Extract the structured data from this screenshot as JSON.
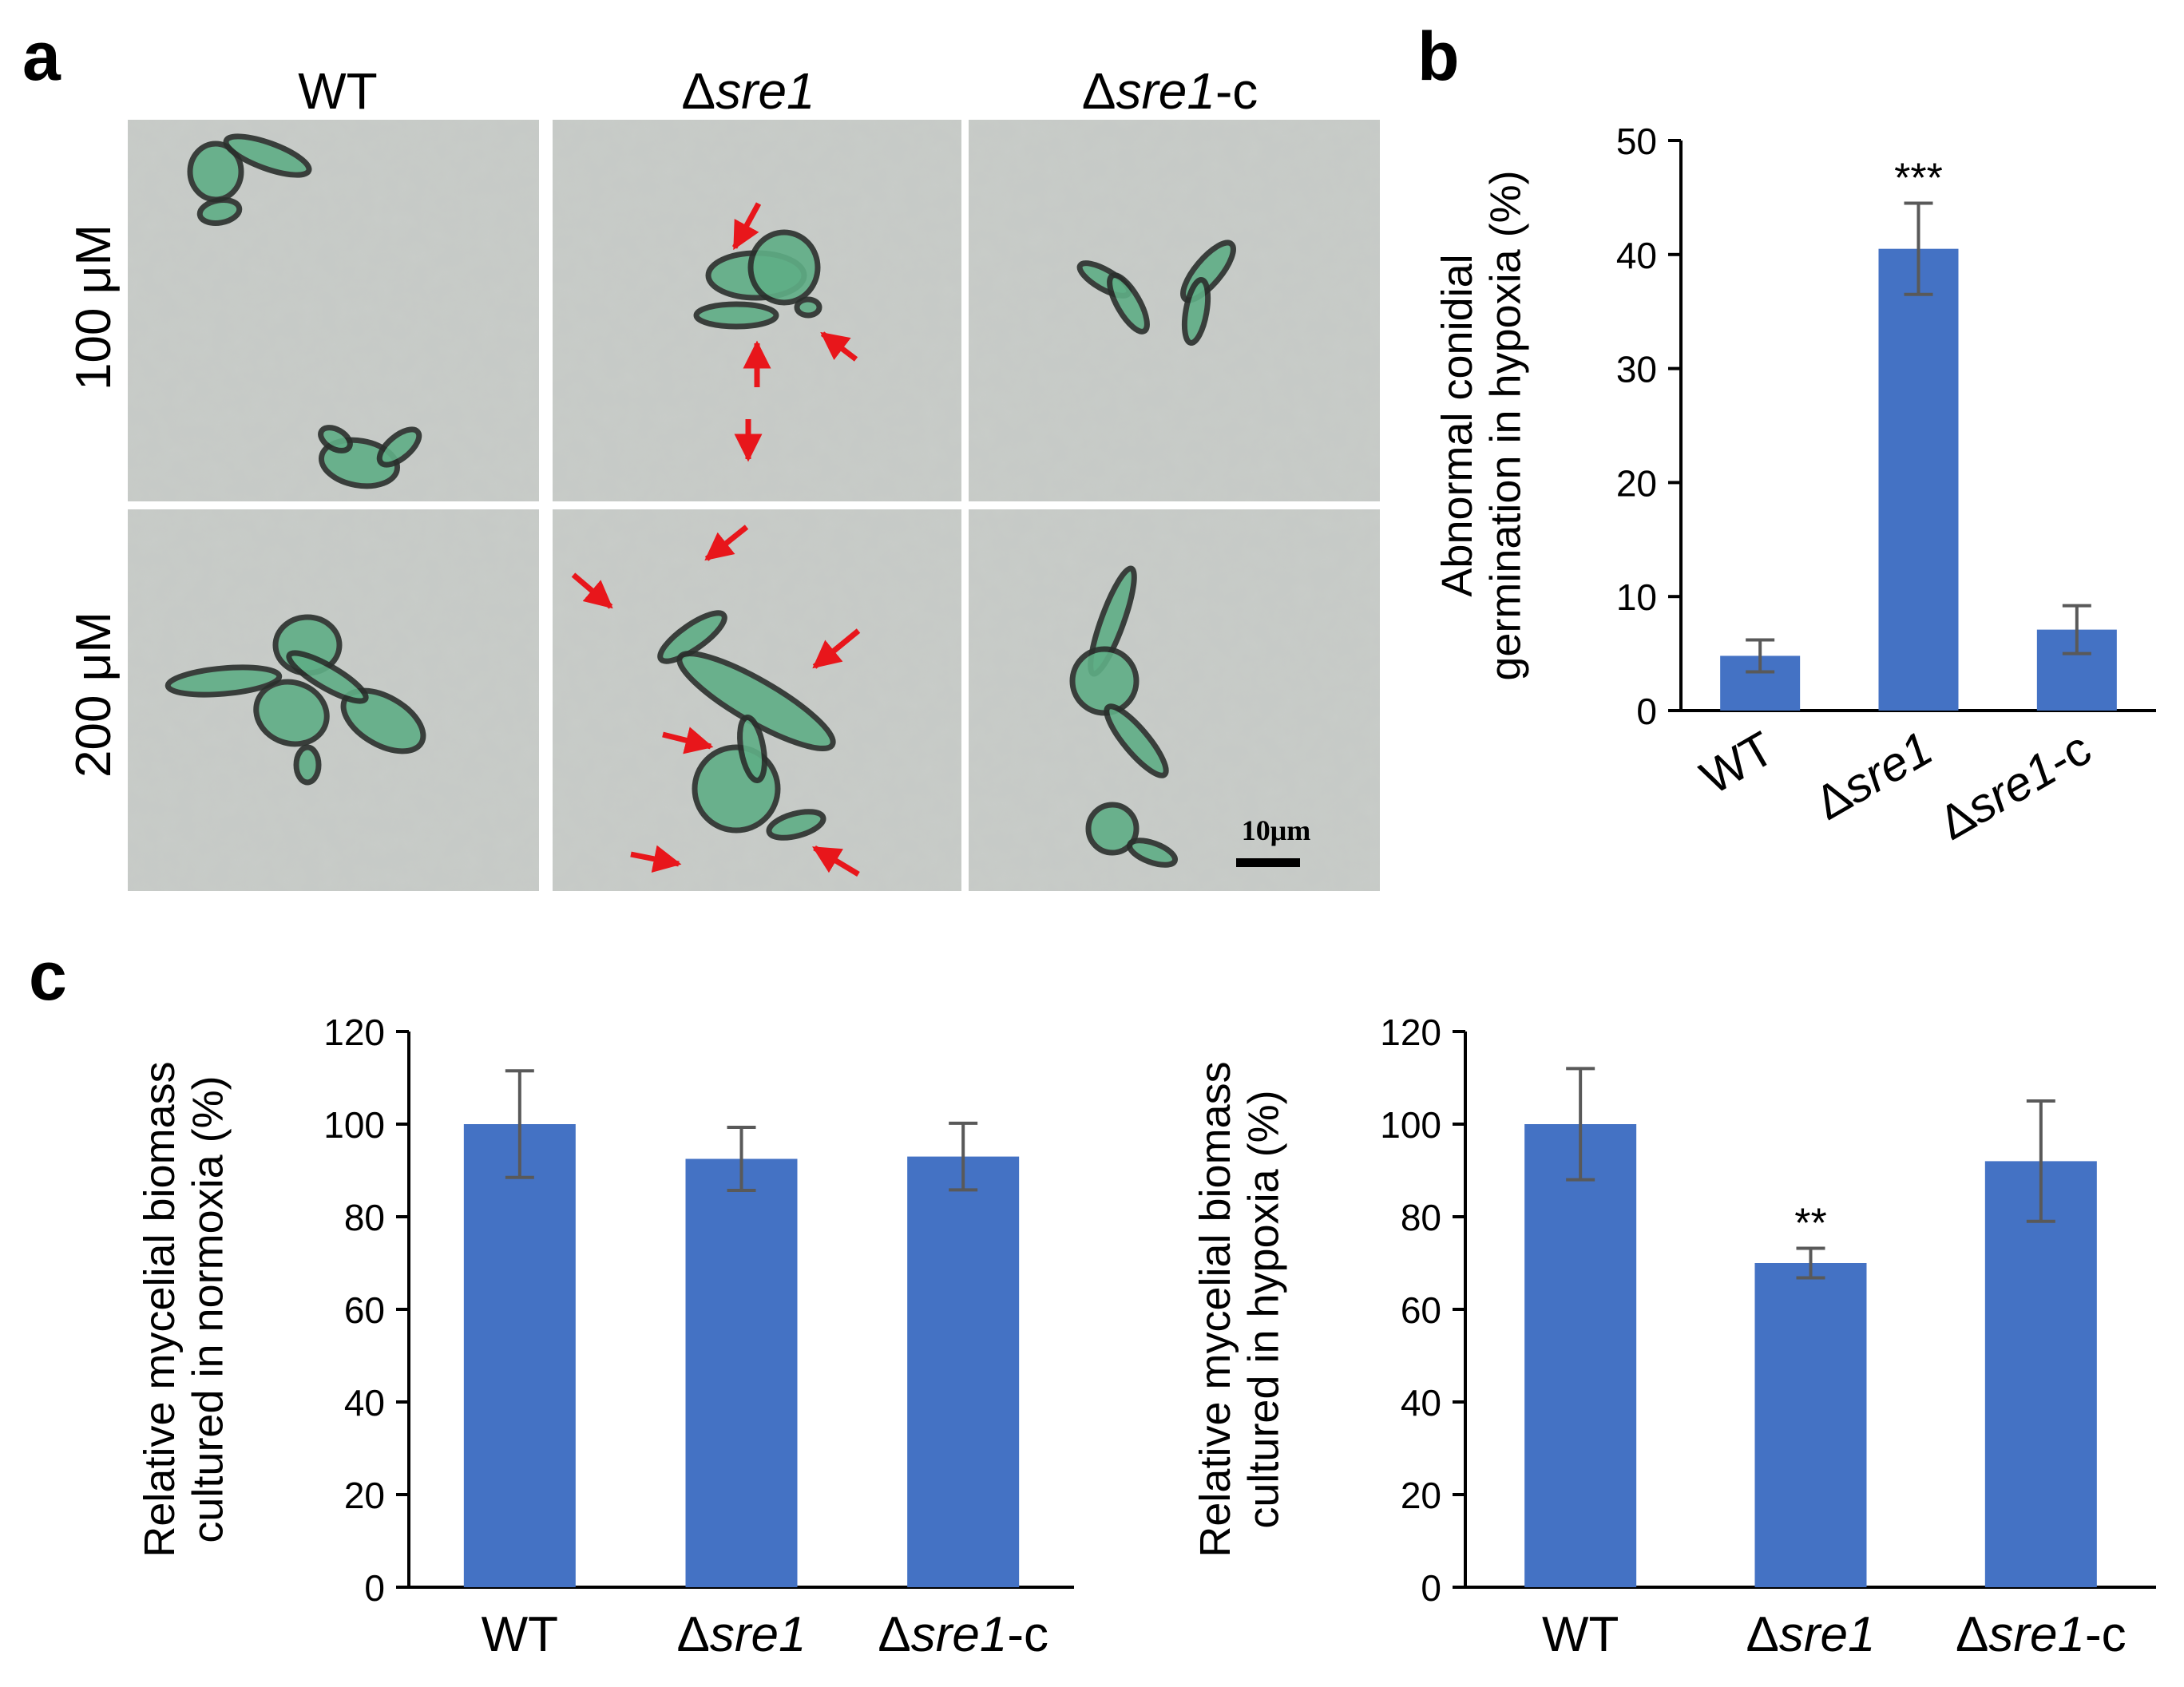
{
  "panel_letters": {
    "a": "a",
    "b": "b",
    "c": "c"
  },
  "colors": {
    "bar": "#4472C4",
    "error": "#595959",
    "arrow": "#E8161B",
    "micro_bg": "#c8ccc8",
    "cell": "#5fae86"
  },
  "panel_a": {
    "columns": [
      {
        "delta": "Δ",
        "name": "",
        "suffix": "WT",
        "label": "WT"
      },
      {
        "delta": "Δ",
        "name": "sre1",
        "suffix": "",
        "label": "Δsre1"
      },
      {
        "delta": "Δ",
        "name": "sre1",
        "suffix": "-c",
        "label": "Δsre1-c"
      }
    ],
    "rows": [
      "100 μM",
      "200 μM"
    ],
    "scale_bar": "10μm"
  },
  "chart_data": [
    {
      "type": "bar",
      "panel": "b",
      "categories": [
        "WT",
        "Δsre1",
        "Δsre1-c"
      ],
      "values": [
        4.8,
        40.5,
        7.1
      ],
      "errors": [
        1.4,
        4.0,
        2.1
      ],
      "significance": [
        "",
        "***",
        ""
      ],
      "ylabel_line1": "Abnormal conidial",
      "ylabel_line2": "germination in hypoxia (%)",
      "ylim": [
        0,
        50
      ],
      "yticks": [
        0,
        10,
        20,
        30,
        40,
        50
      ],
      "grid": false
    },
    {
      "type": "bar",
      "panel": "c-left",
      "categories": [
        "WT",
        "Δsre1",
        "Δsre1-c"
      ],
      "values": [
        100,
        92.5,
        93
      ],
      "errors": [
        11.5,
        6.8,
        7.2
      ],
      "significance": [
        "",
        "",
        ""
      ],
      "ylabel_line1": "Relative mycelial biomass",
      "ylabel_line2": "cultured in normoxia (%)",
      "ylim": [
        0,
        120
      ],
      "yticks": [
        0,
        20,
        40,
        60,
        80,
        100,
        120
      ],
      "grid": false
    },
    {
      "type": "bar",
      "panel": "c-right",
      "categories": [
        "WT",
        "Δsre1",
        "Δsre1-c"
      ],
      "values": [
        100,
        70,
        92
      ],
      "errors": [
        12,
        3.2,
        13
      ],
      "significance": [
        "",
        "**",
        ""
      ],
      "ylabel_line1": "Relative mycelial biomass",
      "ylabel_line2": "cultured in hypoxia (%)",
      "ylim": [
        0,
        120
      ],
      "yticks": [
        0,
        20,
        40,
        60,
        80,
        100,
        120
      ],
      "grid": false
    }
  ]
}
